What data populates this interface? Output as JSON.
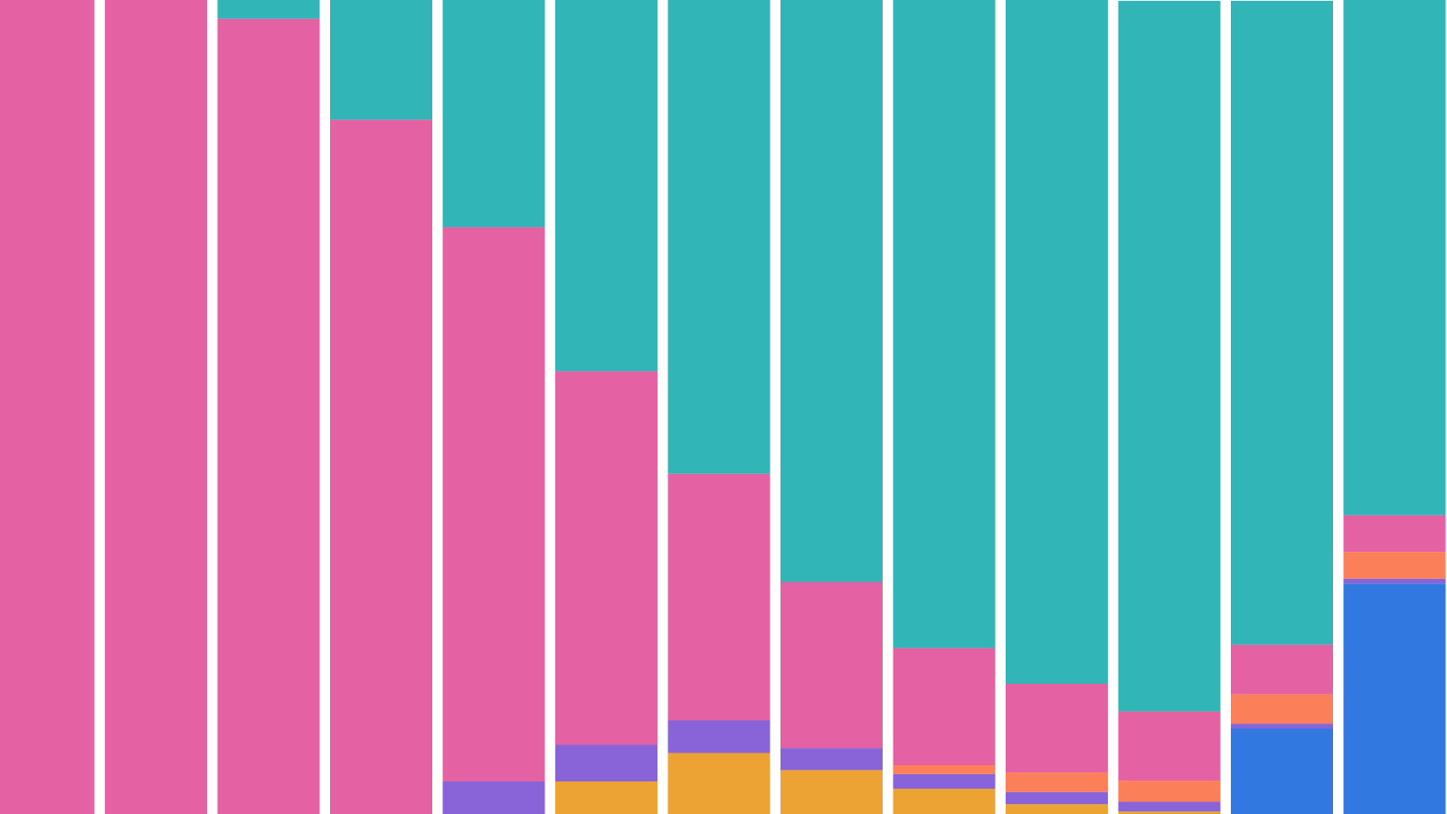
{
  "chart_data": {
    "type": "stacked-bar",
    "categories": [
      null,
      null,
      null,
      null,
      null,
      null,
      null,
      null,
      null,
      null,
      null,
      null,
      null
    ],
    "ylim": [
      0,
      100
    ],
    "series": [
      {
        "color": "#3178e0",
        "values": [
          0,
          0,
          0,
          0,
          0,
          0,
          0,
          0,
          0,
          0,
          0,
          10.5,
          28.3
        ]
      },
      {
        "color": "#eda234",
        "values": [
          0,
          0,
          0,
          0,
          0,
          4.0,
          7.5,
          5.4,
          3.1,
          1.2,
          0.3,
          0,
          0
        ]
      },
      {
        "color": "#8864d8",
        "values": [
          0,
          0,
          0,
          0,
          4.0,
          4.5,
          4.0,
          2.7,
          1.8,
          1.5,
          1.2,
          0.6,
          0.6
        ]
      },
      {
        "color": "#fb805a",
        "values": [
          0,
          0,
          0,
          0,
          0,
          0,
          0,
          0,
          1.1,
          2.4,
          2.6,
          3.6,
          3.3
        ]
      },
      {
        "color": "#e462a4",
        "values": [
          100,
          100,
          97.7,
          85.3,
          68.1,
          45.9,
          30.3,
          20.4,
          14.4,
          10.9,
          8.5,
          6.1,
          4.5
        ]
      },
      {
        "color": "#31b5b6",
        "values": [
          0,
          0,
          2.3,
          14.7,
          27.9,
          45.6,
          58.2,
          71.5,
          79.6,
          84.0,
          87.3,
          79.1,
          63.3
        ]
      }
    ]
  }
}
